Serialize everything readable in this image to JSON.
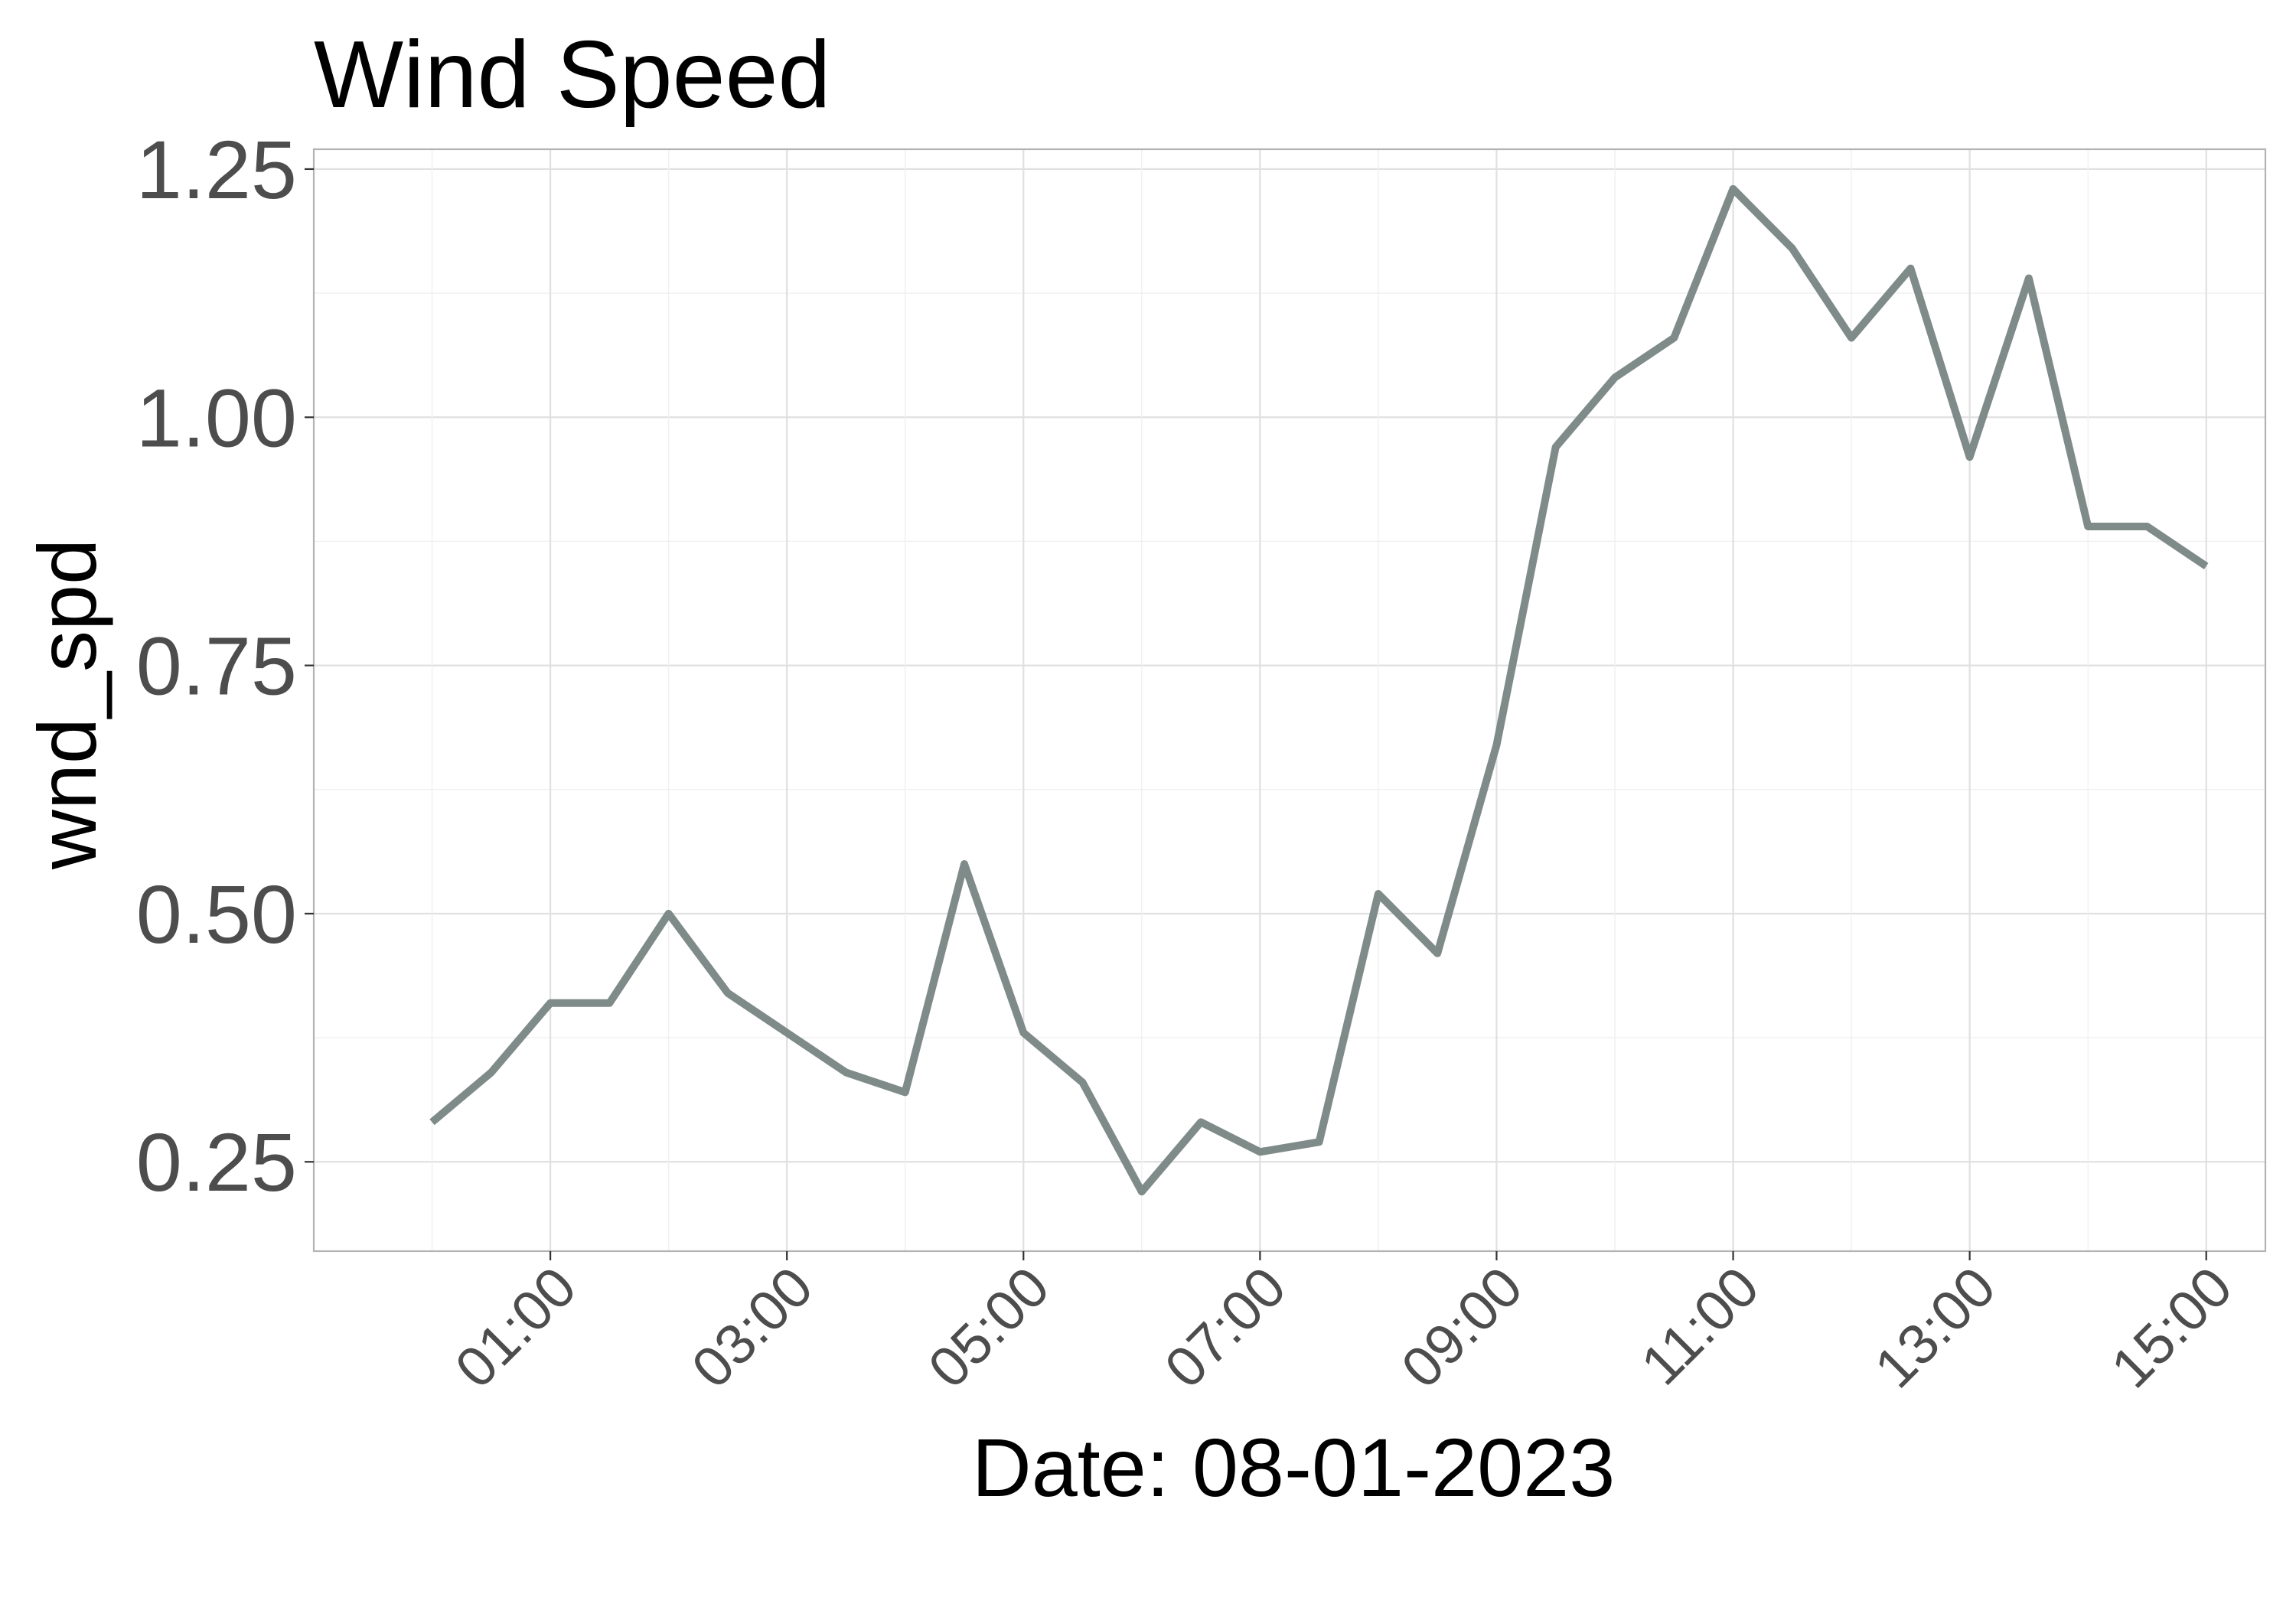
{
  "chart_data": {
    "type": "line",
    "title": "Wind Speed",
    "xlabel": "Date: 08-01-2023",
    "ylabel": "wnd_spd",
    "x_tick_labels": [
      "01:00",
      "03:00",
      "05:00",
      "07:00",
      "09:00",
      "11:00",
      "13:00",
      "15:00"
    ],
    "y_tick_labels": [
      "0.25",
      "0.50",
      "0.75",
      "1.00",
      "1.25"
    ],
    "y_ticks": [
      0.25,
      0.5,
      0.75,
      1.0,
      1.25
    ],
    "x_ticks": [
      "01:00",
      "03:00",
      "05:00",
      "07:00",
      "09:00",
      "11:00",
      "13:00",
      "15:00"
    ],
    "xlim": [
      "2023-08-01 00:00",
      "2023-08-01 15:30"
    ],
    "ylim": [
      0.16,
      1.27
    ],
    "grid": true,
    "line_color": "#7f8b89",
    "series": [
      {
        "x": [
          "00:00",
          "00:30",
          "01:00",
          "01:30",
          "02:00",
          "02:30",
          "03:00",
          "03:30",
          "04:00",
          "04:30",
          "05:00",
          "05:30",
          "06:00",
          "06:30",
          "07:00",
          "07:30",
          "08:00",
          "08:30",
          "09:00",
          "09:30",
          "10:00",
          "10:30",
          "11:00",
          "11:30",
          "12:00",
          "12:30",
          "13:00",
          "13:30",
          "14:00",
          "14:30",
          "15:00"
        ],
        "values": [
          0.29,
          0.34,
          0.41,
          0.41,
          0.5,
          0.42,
          0.38,
          0.34,
          0.32,
          0.55,
          0.38,
          0.33,
          0.22,
          0.29,
          0.26,
          0.27,
          0.52,
          0.46,
          0.67,
          0.97,
          1.04,
          1.08,
          1.23,
          1.17,
          1.08,
          1.15,
          0.96,
          1.14,
          0.89,
          0.89,
          0.85
        ]
      }
    ]
  }
}
